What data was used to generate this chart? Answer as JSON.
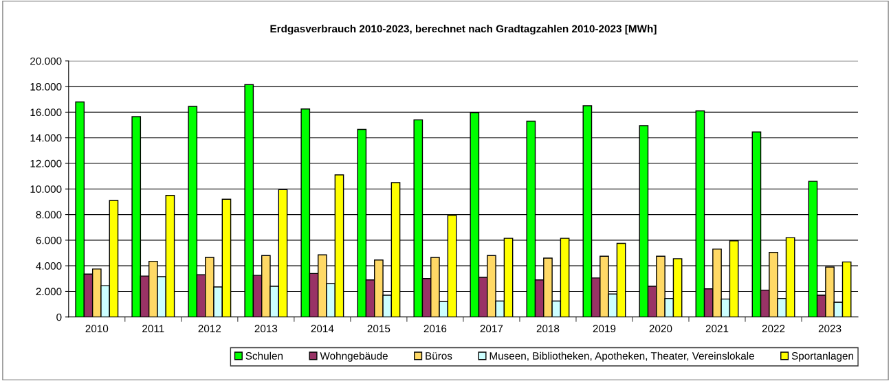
{
  "chart_data": {
    "type": "bar",
    "title": "Erdgasverbrauch 2010-2023, berechnet nach Gradtagzahlen 2010-2023 [MWh]",
    "categories": [
      "2010",
      "2011",
      "2012",
      "2013",
      "2014",
      "2015",
      "2016",
      "2017",
      "2018",
      "2019",
      "2020",
      "2021",
      "2022",
      "2023"
    ],
    "series": [
      {
        "name": "Schulen",
        "color": "#00ff00",
        "values": [
          16800,
          15650,
          16450,
          18150,
          16250,
          14650,
          15400,
          15950,
          15300,
          16500,
          14950,
          16100,
          14450,
          10600
        ]
      },
      {
        "name": "Wohngebäude",
        "color": "#993366",
        "values": [
          3350,
          3200,
          3300,
          3250,
          3400,
          2900,
          3000,
          3100,
          2900,
          3050,
          2400,
          2200,
          2100,
          1700
        ]
      },
      {
        "name": "Büros",
        "color": "#ffd966",
        "values": [
          3750,
          4350,
          4650,
          4800,
          4850,
          4450,
          4650,
          4800,
          4600,
          4750,
          4750,
          5300,
          5050,
          3900
        ]
      },
      {
        "name": "Museen, Bibliotheken, Apotheken, Theater, Vereinslokale",
        "color": "#ccffff",
        "values": [
          2450,
          3150,
          2350,
          2400,
          2600,
          1700,
          1200,
          1250,
          1250,
          1800,
          1450,
          1400,
          1450,
          1150
        ]
      },
      {
        "name": "Sportanlagen",
        "color": "#ffff00",
        "values": [
          9100,
          9500,
          9200,
          9950,
          11100,
          10500,
          7950,
          6150,
          6150,
          5750,
          4550,
          5950,
          6200,
          4300
        ]
      }
    ],
    "ylim": [
      0,
      20000
    ],
    "yticks": [
      {
        "value": 0,
        "label": "0"
      },
      {
        "value": 2000,
        "label": "2.000"
      },
      {
        "value": 4000,
        "label": "4.000"
      },
      {
        "value": 6000,
        "label": "6.000"
      },
      {
        "value": 8000,
        "label": "8.000"
      },
      {
        "value": 10000,
        "label": "10.000"
      },
      {
        "value": 12000,
        "label": "12.000"
      },
      {
        "value": 14000,
        "label": "14.000"
      },
      {
        "value": 16000,
        "label": "16.000"
      },
      {
        "value": 18000,
        "label": "18.000"
      },
      {
        "value": 20000,
        "label": "20.000"
      }
    ],
    "grid": "y",
    "legend": "bottom right"
  }
}
